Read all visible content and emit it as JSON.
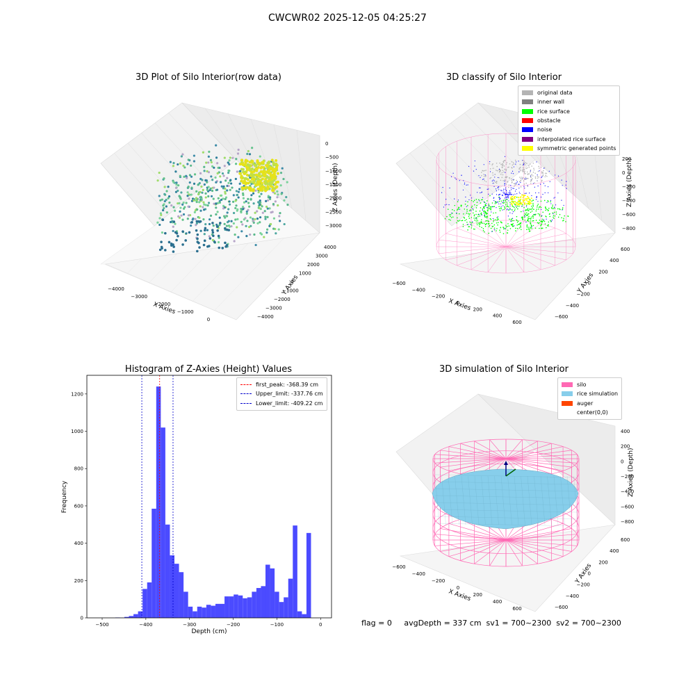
{
  "figure": {
    "title": "CWCWR02 2025-12-05 04:25:27",
    "footer": "flag = 0     avgDepth = 337 cm  sv1 = 700~2300  sv2 = 700~2300"
  },
  "colors": {
    "pink": "#ff69b4",
    "histogram_bar": "#4b4bff",
    "rice_sim": "#87ceeb",
    "auger": "#ff4500"
  },
  "chart_data": [
    {
      "type": "scatter",
      "title": "3D Plot of Silo Interior(row data)",
      "xlabel": "X Axies",
      "ylabel": "Y Axies",
      "zlabel": "Z Axies (Depth)",
      "x_ticks": [
        "−4000",
        "−3000",
        "−2000",
        "−1000",
        "0"
      ],
      "y_ticks": [
        "−4000",
        "−3000",
        "−2000",
        "−1000",
        "0",
        "1000",
        "2000",
        "3000",
        "4000"
      ],
      "z_ticks": [
        "0",
        "−500",
        "−1000",
        "−1500",
        "−2000",
        "−2500",
        "−3000"
      ],
      "grid": true
    },
    {
      "type": "scatter",
      "title": "3D classify of Silo Interior",
      "xlabel": "X Axies",
      "ylabel": "Y Axies",
      "zlabel": "Z Axies (Depth)",
      "x_ticks": [
        "−600",
        "−400",
        "−200",
        "0",
        "200",
        "400",
        "600"
      ],
      "y_ticks": [
        "−600",
        "−400",
        "−200",
        "0",
        "200",
        "400",
        "600"
      ],
      "z_ticks": [
        "200",
        "0",
        "−200",
        "−400",
        "−600",
        "−800"
      ],
      "legend_position": "top-right",
      "legend": [
        {
          "label": "original data",
          "color": "#b4b4b4"
        },
        {
          "label": "inner wall",
          "color": "#808080"
        },
        {
          "label": "rice surface",
          "color": "#00ff00"
        },
        {
          "label": "obstacle",
          "color": "#ff0000"
        },
        {
          "label": "noise",
          "color": "#0000ff"
        },
        {
          "label": "interpolated rice surface",
          "color": "#800080"
        },
        {
          "label": "symmetric generated points",
          "color": "#ffff00"
        }
      ],
      "z_extra_tick": "0",
      "grid": true
    },
    {
      "type": "bar",
      "title": "Histogram of Z-Axies (Height) Values",
      "xlabel": "Depth (cm)",
      "ylabel": "Frequency",
      "xlim": [
        -535,
        25
      ],
      "ylim": [
        0,
        1300
      ],
      "x_ticks": [
        -500,
        -400,
        -300,
        -200,
        -100,
        0
      ],
      "y_ticks": [
        0,
        200,
        400,
        600,
        800,
        1000,
        1200
      ],
      "bin_start": -470,
      "bin_width": 10.42,
      "values": [
        2,
        1,
        5,
        10,
        20,
        35,
        155,
        190,
        585,
        1240,
        1020,
        500,
        335,
        290,
        245,
        140,
        60,
        35,
        60,
        55,
        70,
        65,
        75,
        75,
        115,
        115,
        125,
        120,
        105,
        110,
        140,
        160,
        170,
        285,
        265,
        140,
        85,
        110,
        210,
        495,
        35,
        20,
        455
      ],
      "vlines": [
        {
          "label": "first_peak: -368.39 cm",
          "x": -368.39,
          "color": "#ff0000"
        },
        {
          "label": "Upper_limit: -337.76 cm",
          "x": -337.76,
          "color": "#0000cc"
        },
        {
          "label": "Lower_limit: -409.22 cm",
          "x": -409.22,
          "color": "#0000cc"
        }
      ],
      "legend_position": "top-right",
      "grid": false
    },
    {
      "type": "scatter",
      "title": "3D simulation of Silo Interior",
      "xlabel": "X Axies",
      "ylabel": "Y Axies",
      "zlabel": "Z Axies (Depth)",
      "x_ticks": [
        "−600",
        "−400",
        "−200",
        "0",
        "200",
        "400",
        "600"
      ],
      "y_ticks": [
        "−600",
        "−400",
        "−200",
        "0",
        "200",
        "400",
        "600"
      ],
      "z_ticks": [
        "400",
        "200",
        "0",
        "−200",
        "−400",
        "−600",
        "−800"
      ],
      "legend_position": "top-right",
      "legend": [
        {
          "label": "silo",
          "color": "#ff69b4"
        },
        {
          "label": "rice simulation",
          "color": "#87ceeb"
        },
        {
          "label": "auger",
          "color": "#ff4500"
        },
        {
          "label": "center(0,0)",
          "color": "#ffffff"
        }
      ],
      "grid": true
    }
  ]
}
